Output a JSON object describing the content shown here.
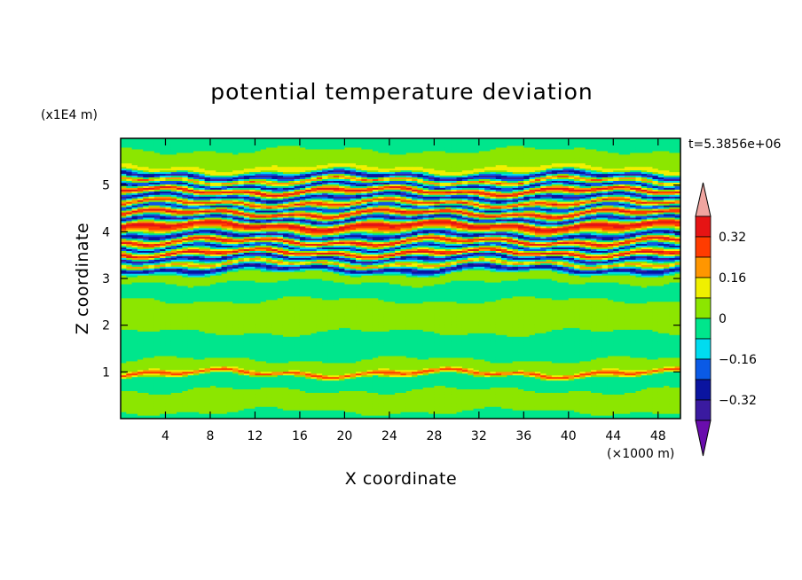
{
  "chart_data": {
    "type": "heatmap",
    "title": "potential temperature deviation",
    "xlabel": "X coordinate",
    "ylabel": "Z coordinate",
    "x_unit": "(×1000 m)",
    "y_unit": "(x1E4 m)",
    "time_label": "t=5.3856e+06",
    "xlim": [
      0,
      50
    ],
    "ylim": [
      0,
      6
    ],
    "x_ticks": [
      4,
      8,
      12,
      16,
      20,
      24,
      28,
      32,
      36,
      40,
      44,
      48
    ],
    "y_ticks": [
      1,
      2,
      3,
      4,
      5
    ],
    "colorbar": {
      "levels": [
        -0.4,
        -0.32,
        -0.24,
        -0.16,
        -0.08,
        0,
        0.08,
        0.16,
        0.24,
        0.32,
        0.4
      ],
      "tick_labels": [
        "0.32",
        "0.16",
        "0",
        "−0.16",
        "−0.32"
      ],
      "tick_values": [
        0.32,
        0.16,
        0,
        -0.16,
        -0.32
      ],
      "colors": [
        "#6a0dad",
        "#3a1aa0",
        "#0a14a0",
        "#0a5ae6",
        "#00dcf0",
        "#00e68c",
        "#8ce600",
        "#f0f000",
        "#ff9600",
        "#ff3c00",
        "#e61414",
        "#f0a5a0"
      ],
      "extend": "both"
    },
    "bands": [
      {
        "z": 0.0,
        "v": -0.02
      },
      {
        "z": 0.4,
        "v": 0.03
      },
      {
        "z": 0.9,
        "v": -0.04
      },
      {
        "z": 0.98,
        "v": 0.3
      },
      {
        "z": 1.05,
        "v": 0.02
      },
      {
        "z": 1.6,
        "v": -0.03
      },
      {
        "z": 2.2,
        "v": 0.04
      },
      {
        "z": 2.8,
        "v": -0.03
      },
      {
        "z": 3.1,
        "v": 0.04
      },
      {
        "z": 3.22,
        "v": -0.36
      },
      {
        "z": 3.32,
        "v": 0.22
      },
      {
        "z": 3.45,
        "v": -0.35
      },
      {
        "z": 3.55,
        "v": 0.38
      },
      {
        "z": 3.68,
        "v": -0.3
      },
      {
        "z": 3.8,
        "v": 0.38
      },
      {
        "z": 3.92,
        "v": -0.36
      },
      {
        "z": 4.05,
        "v": 0.2
      },
      {
        "z": 4.15,
        "v": 0.39
      },
      {
        "z": 4.28,
        "v": -0.36
      },
      {
        "z": 4.4,
        "v": 0.39
      },
      {
        "z": 4.52,
        "v": -0.3
      },
      {
        "z": 4.62,
        "v": 0.33
      },
      {
        "z": 4.75,
        "v": -0.36
      },
      {
        "z": 4.88,
        "v": 0.39
      },
      {
        "z": 5.0,
        "v": -0.33
      },
      {
        "z": 5.1,
        "v": 0.25
      },
      {
        "z": 5.2,
        "v": -0.36
      },
      {
        "z": 5.32,
        "v": 0.12
      },
      {
        "z": 5.5,
        "v": 0.02
      },
      {
        "z": 6.0,
        "v": -0.02
      }
    ]
  }
}
